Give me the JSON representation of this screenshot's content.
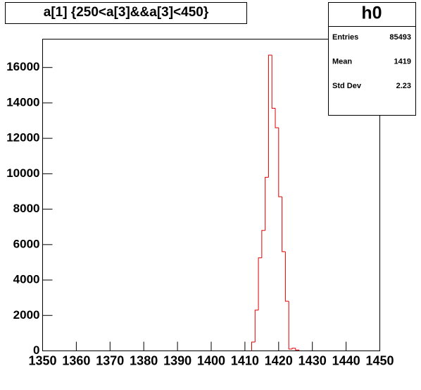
{
  "chart_data": {
    "type": "histogram",
    "title": "a[1] {250<a[3]&&a[3]<450}",
    "bins": [
      1412,
      1413,
      1414,
      1415,
      1416,
      1417,
      1418,
      1419,
      1420,
      1421,
      1422,
      1423,
      1424,
      1425,
      1426
    ],
    "values": [
      500,
      2300,
      5250,
      6800,
      9800,
      16700,
      13700,
      12600,
      8700,
      5600,
      2800,
      100,
      150,
      50
    ],
    "color": "#e00000",
    "xlim": [
      1350,
      1450
    ],
    "xticks": [
      1350,
      1360,
      1370,
      1380,
      1390,
      1400,
      1410,
      1420,
      1430,
      1440,
      1450
    ],
    "ylim": [
      0,
      17600
    ],
    "yticks": [
      0,
      2000,
      4000,
      6000,
      8000,
      10000,
      12000,
      14000,
      16000
    ],
    "stats": {
      "name": "h0",
      "rows": [
        [
          "Entries",
          "85493"
        ],
        [
          "Mean",
          "1419"
        ],
        [
          "Std Dev",
          "2.23"
        ]
      ]
    }
  }
}
